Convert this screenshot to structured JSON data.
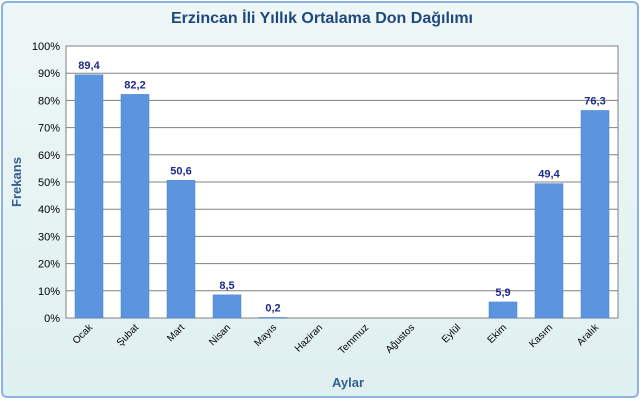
{
  "chart_data": {
    "type": "bar",
    "title": "Erzincan İli Yıllık Ortalama Don Dağılımı",
    "xlabel": "Aylar",
    "ylabel": "Frekans",
    "categories": [
      "Ocak",
      "Şubat",
      "Mart",
      "Nisan",
      "Mayıs",
      "Haziran",
      "Temmuz",
      "Ağustos",
      "Eylül",
      "Ekim",
      "Kasım",
      "Aralık"
    ],
    "values": [
      89.4,
      82.2,
      50.6,
      8.5,
      0.2,
      0,
      0,
      0,
      0,
      5.9,
      49.4,
      76.3
    ],
    "data_labels": [
      "89,4",
      "82,2",
      "50,6",
      "8,5",
      "0,2",
      "",
      "",
      "",
      "",
      "5,9",
      "49,4",
      "76,3"
    ],
    "ylim": [
      0,
      100
    ],
    "yticks": [
      "0%",
      "10%",
      "20%",
      "30%",
      "40%",
      "50%",
      "60%",
      "70%",
      "80%",
      "90%",
      "100%"
    ],
    "grid": true,
    "bar_color": "#5b95e0"
  }
}
